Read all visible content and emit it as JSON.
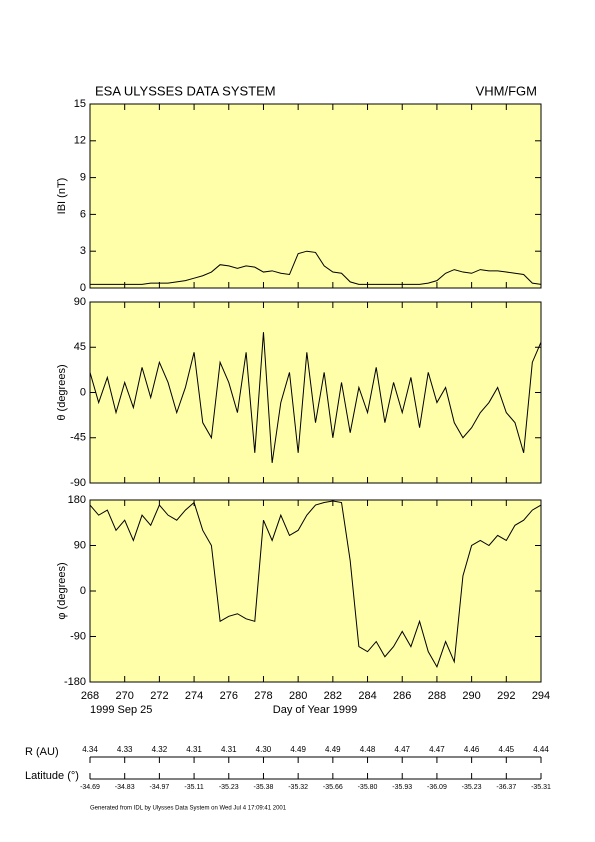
{
  "header": {
    "title": "ESA ULYSSES DATA SYSTEM",
    "instrument": "VHM/FGM"
  },
  "chart_data": [
    {
      "type": "line",
      "y_label": "IBI (nT)",
      "color": "#000000",
      "x": [
        268,
        268.5,
        269,
        269.5,
        270,
        270.5,
        271,
        271.5,
        272,
        272.5,
        273,
        273.5,
        274,
        274.5,
        275,
        275.5,
        276,
        276.5,
        277,
        277.5,
        278,
        278.5,
        279,
        279.5,
        280,
        280.5,
        281,
        281.5,
        282,
        282.5,
        283,
        283.5,
        284,
        284.5,
        285,
        285.5,
        286,
        286.5,
        287,
        287.5,
        288,
        288.5,
        289,
        289.5,
        290,
        290.5,
        291,
        291.5,
        292,
        292.5,
        293,
        293.5,
        294
      ],
      "values": [
        0.3,
        0.3,
        0.3,
        0.3,
        0.3,
        0.3,
        0.3,
        0.4,
        0.4,
        0.4,
        0.5,
        0.6,
        0.8,
        1.0,
        1.3,
        1.9,
        1.8,
        1.6,
        1.8,
        1.7,
        1.3,
        1.4,
        1.2,
        1.1,
        2.8,
        3.0,
        2.9,
        1.8,
        1.3,
        1.2,
        0.5,
        0.3,
        0.3,
        0.3,
        0.3,
        0.3,
        0.3,
        0.3,
        0.3,
        0.4,
        0.6,
        1.2,
        1.5,
        1.3,
        1.2,
        1.5,
        1.4,
        1.4,
        1.3,
        1.2,
        1.1,
        0.4,
        0.3
      ],
      "xlim": [
        268,
        294
      ],
      "xticks": [
        268,
        270,
        272,
        274,
        276,
        278,
        280,
        282,
        284,
        286,
        288,
        290,
        292,
        294
      ],
      "ylim": [
        0,
        15
      ],
      "yticks": [
        0,
        3,
        6,
        9,
        12,
        15
      ]
    },
    {
      "type": "line",
      "y_label": "θ (degrees)",
      "color": "#000000",
      "x": [
        268,
        268.5,
        269,
        269.5,
        270,
        270.5,
        271,
        271.5,
        272,
        272.5,
        273,
        273.5,
        274,
        274.5,
        275,
        275.5,
        276,
        276.5,
        277,
        277.5,
        278,
        278.5,
        279,
        279.5,
        280,
        280.5,
        281,
        281.5,
        282,
        282.5,
        283,
        283.5,
        284,
        284.5,
        285,
        285.5,
        286,
        286.5,
        287,
        287.5,
        288,
        288.5,
        289,
        289.5,
        290,
        290.5,
        291,
        291.5,
        292,
        292.5,
        293,
        293.5,
        294
      ],
      "values": [
        20,
        -10,
        15,
        -20,
        10,
        -15,
        25,
        -5,
        30,
        10,
        -20,
        5,
        40,
        -30,
        -45,
        30,
        10,
        -20,
        40,
        -60,
        60,
        -70,
        -10,
        20,
        -60,
        40,
        -30,
        20,
        -45,
        10,
        -40,
        5,
        -20,
        25,
        -30,
        10,
        -20,
        15,
        -35,
        20,
        -10,
        5,
        -30,
        -45,
        -35,
        -20,
        -10,
        5,
        -20,
        -30,
        -60,
        30,
        50
      ],
      "xlim": [
        268,
        294
      ],
      "xticks": [
        268,
        270,
        272,
        274,
        276,
        278,
        280,
        282,
        284,
        286,
        288,
        290,
        292,
        294
      ],
      "ylim": [
        -90,
        90
      ],
      "yticks": [
        -90,
        -45,
        0,
        45,
        90
      ]
    },
    {
      "type": "line",
      "y_label": "φ (degrees)",
      "color": "#000000",
      "x_label": "Day of Year 1999",
      "date_label": "1999 Sep 25",
      "x": [
        268,
        268.5,
        269,
        269.5,
        270,
        270.5,
        271,
        271.5,
        272,
        272.5,
        273,
        273.5,
        274,
        274.5,
        275,
        275.5,
        276,
        276.5,
        277,
        277.5,
        278,
        278.5,
        279,
        279.5,
        280,
        280.5,
        281,
        281.5,
        282,
        282.5,
        283,
        283.5,
        284,
        284.5,
        285,
        285.5,
        286,
        286.5,
        287,
        287.5,
        288,
        288.5,
        289,
        289.5,
        290,
        290.5,
        291,
        291.5,
        292,
        292.5,
        293,
        293.5,
        294
      ],
      "values": [
        170,
        150,
        160,
        120,
        140,
        100,
        150,
        130,
        170,
        150,
        140,
        160,
        175,
        120,
        90,
        -60,
        -50,
        -45,
        -55,
        -60,
        140,
        100,
        150,
        110,
        120,
        150,
        170,
        175,
        178,
        175,
        60,
        -110,
        -120,
        -100,
        -130,
        -110,
        -80,
        -110,
        -60,
        -120,
        -150,
        -100,
        -140,
        30,
        90,
        100,
        90,
        110,
        100,
        130,
        140,
        160,
        170
      ],
      "xlim": [
        268,
        294
      ],
      "xticks": [
        268,
        270,
        272,
        274,
        276,
        278,
        280,
        282,
        284,
        286,
        288,
        290,
        292,
        294
      ],
      "ylim": [
        -180,
        180
      ],
      "yticks": [
        -180,
        -90,
        0,
        90,
        180
      ]
    }
  ],
  "ephemeris": {
    "r_label": "R (AU)",
    "r_values": [
      "4.34",
      "4.33",
      "4.32",
      "4.31",
      "4.31",
      "4.30",
      "4.49",
      "4.49",
      "4.48",
      "4.47",
      "4.47",
      "4.46",
      "4.45",
      "4.44"
    ],
    "latitude_label": "Latitude (°)",
    "latitude_values": [
      "-34.69",
      "-34.83",
      "-34.97",
      "-35.11",
      "-35.23",
      "-35.38",
      "-35.32",
      "-35.66",
      "-35.80",
      "-35.93",
      "-36.09",
      "-35.23",
      "-36.37",
      "-35.31"
    ]
  },
  "footer": "Generated from IDL by Ulysses Data System on Wed Jul 4 17:09:41 2001"
}
